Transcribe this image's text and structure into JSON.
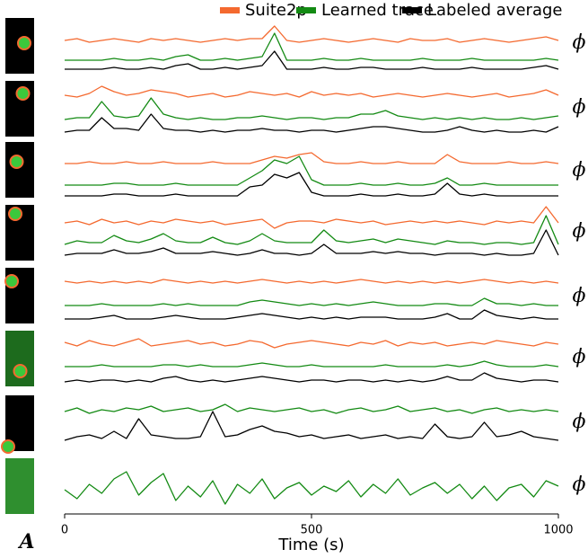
{
  "chart_data": {
    "type": "traces",
    "panel_label": "A",
    "row_label": "ϕ",
    "xlabel": "Time (s)",
    "xlim": [
      0,
      1000
    ],
    "xticks": [
      0,
      500,
      1000
    ],
    "legend": [
      {
        "name": "Suite2p",
        "color": "#f4692f"
      },
      {
        "name": "Learned trace",
        "color": "#138a13"
      },
      {
        "name": "Labeled average",
        "color": "#000000"
      }
    ],
    "x": [
      0,
      25,
      50,
      75,
      100,
      125,
      150,
      175,
      200,
      225,
      250,
      275,
      300,
      325,
      350,
      375,
      400,
      425,
      450,
      475,
      500,
      525,
      550,
      575,
      600,
      625,
      650,
      675,
      700,
      725,
      750,
      775,
      800,
      825,
      850,
      875,
      900,
      925,
      950,
      975,
      1000
    ],
    "rows": [
      {
        "suite2p": [
          0,
          1,
          -1,
          0,
          1,
          0,
          -1,
          1,
          0,
          1,
          0,
          -1,
          0,
          1,
          0,
          1,
          1,
          8,
          0,
          -1,
          0,
          1,
          0,
          -1,
          0,
          1,
          0,
          -1,
          1,
          0,
          0,
          1,
          -1,
          0,
          1,
          0,
          -1,
          0,
          1,
          2,
          0
        ],
        "learned": [
          0,
          0,
          0,
          0,
          1,
          0,
          0,
          1,
          0,
          2,
          3,
          0,
          0,
          1,
          0,
          1,
          2,
          15,
          0,
          0,
          0,
          1,
          0,
          0,
          1,
          0,
          0,
          0,
          0,
          1,
          0,
          0,
          0,
          1,
          0,
          0,
          0,
          0,
          0,
          1,
          0
        ],
        "labeled": [
          0,
          0,
          0,
          0,
          1,
          0,
          0,
          1,
          0,
          2,
          3,
          0,
          0,
          1,
          0,
          1,
          2,
          10,
          0,
          0,
          0,
          1,
          0,
          0,
          1,
          1,
          0,
          0,
          0,
          1,
          0,
          0,
          0,
          1,
          0,
          0,
          0,
          0,
          1,
          2,
          0
        ]
      },
      {
        "suite2p": [
          1,
          0,
          2,
          6,
          3,
          1,
          2,
          4,
          3,
          2,
          0,
          1,
          2,
          0,
          1,
          3,
          2,
          1,
          2,
          0,
          3,
          1,
          2,
          1,
          2,
          0,
          1,
          2,
          1,
          0,
          1,
          2,
          1,
          0,
          1,
          2,
          0,
          1,
          2,
          4,
          1
        ],
        "learned": [
          0,
          1,
          1,
          10,
          2,
          1,
          2,
          12,
          3,
          1,
          0,
          1,
          0,
          0,
          1,
          1,
          2,
          1,
          0,
          1,
          1,
          0,
          1,
          1,
          3,
          3,
          5,
          2,
          1,
          0,
          1,
          0,
          1,
          0,
          1,
          0,
          0,
          1,
          0,
          1,
          2
        ],
        "labeled": [
          0,
          1,
          1,
          8,
          2,
          2,
          1,
          10,
          2,
          1,
          1,
          0,
          1,
          0,
          1,
          1,
          2,
          1,
          1,
          0,
          1,
          1,
          0,
          1,
          2,
          3,
          3,
          2,
          1,
          0,
          0,
          1,
          3,
          1,
          0,
          1,
          0,
          0,
          1,
          0,
          3
        ]
      },
      {
        "suite2p": [
          0,
          0,
          1,
          0,
          0,
          1,
          0,
          0,
          1,
          0,
          0,
          0,
          1,
          0,
          0,
          0,
          2,
          4,
          3,
          5,
          6,
          1,
          0,
          0,
          1,
          0,
          0,
          1,
          0,
          0,
          0,
          5,
          1,
          0,
          0,
          0,
          1,
          0,
          0,
          1,
          0
        ],
        "learned": [
          0,
          0,
          0,
          0,
          1,
          1,
          0,
          0,
          0,
          1,
          0,
          0,
          0,
          0,
          0,
          4,
          8,
          14,
          12,
          16,
          3,
          0,
          0,
          0,
          1,
          0,
          0,
          1,
          0,
          0,
          1,
          4,
          0,
          0,
          1,
          0,
          0,
          0,
          0,
          0,
          0
        ],
        "labeled": [
          0,
          0,
          0,
          0,
          1,
          1,
          0,
          0,
          0,
          1,
          0,
          0,
          0,
          0,
          0,
          5,
          6,
          12,
          10,
          13,
          2,
          0,
          0,
          0,
          1,
          0,
          0,
          1,
          0,
          0,
          1,
          7,
          1,
          0,
          1,
          0,
          0,
          0,
          0,
          0,
          0
        ]
      },
      {
        "suite2p": [
          1,
          2,
          0,
          3,
          1,
          2,
          0,
          2,
          1,
          3,
          2,
          1,
          2,
          0,
          1,
          2,
          3,
          -2,
          1,
          2,
          2,
          1,
          3,
          2,
          1,
          2,
          0,
          1,
          2,
          1,
          2,
          1,
          2,
          1,
          0,
          2,
          1,
          2,
          1,
          10,
          1
        ],
        "learned": [
          0,
          2,
          1,
          1,
          5,
          2,
          1,
          3,
          6,
          2,
          1,
          1,
          4,
          1,
          0,
          2,
          6,
          2,
          1,
          1,
          1,
          8,
          2,
          1,
          2,
          3,
          1,
          3,
          2,
          1,
          0,
          2,
          1,
          1,
          0,
          1,
          1,
          0,
          1,
          16,
          0
        ],
        "labeled": [
          0,
          1,
          1,
          1,
          3,
          1,
          1,
          2,
          4,
          1,
          1,
          1,
          2,
          1,
          0,
          1,
          3,
          1,
          1,
          0,
          1,
          6,
          1,
          1,
          1,
          2,
          1,
          2,
          1,
          1,
          0,
          1,
          1,
          1,
          0,
          1,
          0,
          0,
          1,
          14,
          0
        ]
      },
      {
        "suite2p": [
          1,
          0,
          1,
          0,
          1,
          0,
          1,
          0,
          2,
          1,
          0,
          1,
          0,
          1,
          0,
          1,
          2,
          1,
          0,
          1,
          0,
          1,
          0,
          1,
          2,
          1,
          0,
          1,
          0,
          1,
          0,
          1,
          0,
          1,
          2,
          1,
          0,
          1,
          0,
          1,
          0
        ],
        "learned": [
          0,
          0,
          0,
          1,
          0,
          0,
          0,
          0,
          1,
          0,
          1,
          0,
          0,
          0,
          0,
          2,
          3,
          2,
          1,
          0,
          1,
          0,
          1,
          0,
          1,
          2,
          1,
          0,
          0,
          0,
          1,
          1,
          0,
          0,
          4,
          1,
          1,
          0,
          1,
          0,
          0
        ],
        "labeled": [
          0,
          0,
          0,
          1,
          2,
          0,
          0,
          0,
          1,
          2,
          1,
          0,
          0,
          0,
          1,
          2,
          3,
          2,
          1,
          0,
          1,
          0,
          1,
          0,
          1,
          1,
          1,
          0,
          0,
          0,
          1,
          3,
          0,
          0,
          5,
          2,
          1,
          0,
          1,
          0,
          0
        ]
      },
      {
        "suite2p": [
          1,
          -1,
          2,
          0,
          -1,
          1,
          3,
          -1,
          0,
          1,
          2,
          0,
          1,
          -1,
          0,
          2,
          1,
          -2,
          0,
          1,
          2,
          1,
          0,
          -1,
          1,
          0,
          2,
          -1,
          1,
          0,
          1,
          -1,
          0,
          1,
          0,
          2,
          1,
          0,
          -1,
          1,
          0
        ],
        "learned": [
          0,
          0,
          0,
          1,
          0,
          0,
          0,
          0,
          1,
          1,
          0,
          1,
          0,
          0,
          0,
          1,
          2,
          1,
          0,
          0,
          1,
          0,
          0,
          0,
          0,
          0,
          1,
          0,
          0,
          0,
          0,
          1,
          0,
          1,
          3,
          1,
          0,
          0,
          0,
          1,
          0
        ],
        "labeled": [
          0,
          1,
          0,
          1,
          1,
          0,
          1,
          0,
          2,
          3,
          1,
          0,
          1,
          0,
          1,
          2,
          3,
          2,
          1,
          0,
          1,
          1,
          0,
          1,
          1,
          0,
          1,
          0,
          1,
          0,
          1,
          3,
          1,
          1,
          5,
          2,
          1,
          0,
          1,
          1,
          0
        ]
      },
      {
        "learned": [
          1,
          3,
          0,
          2,
          1,
          3,
          2,
          4,
          1,
          2,
          3,
          1,
          2,
          5,
          1,
          3,
          2,
          1,
          2,
          3,
          1,
          2,
          0,
          2,
          3,
          1,
          2,
          4,
          1,
          2,
          3,
          1,
          2,
          0,
          2,
          3,
          1,
          2,
          1,
          2,
          1
        ],
        "labeled": [
          0,
          2,
          3,
          1,
          5,
          1,
          12,
          3,
          2,
          1,
          1,
          2,
          16,
          2,
          3,
          6,
          8,
          5,
          4,
          2,
          3,
          1,
          2,
          3,
          1,
          2,
          3,
          1,
          2,
          1,
          9,
          2,
          1,
          2,
          10,
          2,
          3,
          5,
          2,
          1,
          0
        ]
      },
      {
        "learned": [
          0,
          -5,
          3,
          -2,
          6,
          10,
          -3,
          4,
          9,
          -6,
          2,
          -4,
          5,
          -8,
          3,
          -2,
          6,
          -5,
          1,
          4,
          -3,
          2,
          -1,
          5,
          -4,
          3,
          -2,
          6,
          -3,
          1,
          4,
          -2,
          3,
          -5,
          2,
          -6,
          1,
          3,
          -4,
          5,
          2
        ]
      }
    ]
  }
}
